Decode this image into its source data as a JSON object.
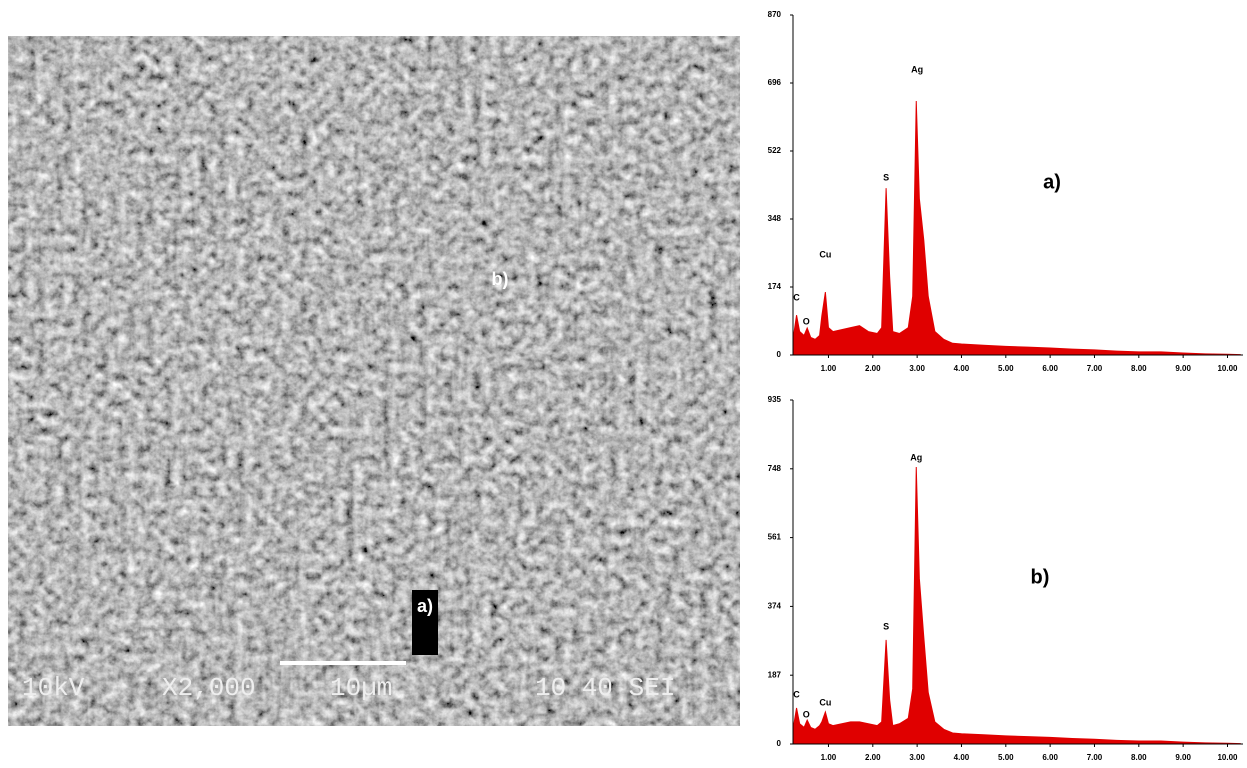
{
  "image": {
    "labels": [
      "b)",
      "a)"
    ],
    "info": [
      "10kV",
      "X2,000",
      "10µm",
      "10 40 SEI"
    ]
  },
  "chart_data": [
    {
      "type": "area",
      "label": "a)",
      "color": "#e00000",
      "x": [
        0.2,
        0.28,
        0.35,
        0.45,
        0.52,
        0.6,
        0.7,
        0.8,
        0.85,
        0.93,
        1.0,
        1.1,
        1.3,
        1.5,
        1.7,
        1.9,
        2.1,
        2.2,
        2.3,
        2.38,
        2.45,
        2.6,
        2.8,
        2.9,
        2.98,
        3.05,
        3.15,
        3.25,
        3.4,
        3.6,
        3.8,
        4.0,
        4.5,
        5,
        5.5,
        6,
        6.5,
        7,
        7.5,
        8,
        8.5,
        9,
        9.5,
        10,
        10.3
      ],
      "values": [
        40,
        102,
        60,
        50,
        69,
        45,
        40,
        50,
        100,
        161,
        70,
        60,
        65,
        70,
        75,
        60,
        55,
        70,
        427,
        200,
        60,
        55,
        70,
        150,
        650,
        400,
        294,
        150,
        60,
        40,
        30,
        28,
        25,
        22,
        20,
        18,
        15,
        13,
        10,
        8,
        8,
        5,
        3,
        2,
        1
      ],
      "xlim": [
        0.2,
        10.35
      ],
      "ylim": [
        0,
        870
      ],
      "xticks": [
        {
          "value": 1,
          "label": "1.00"
        },
        {
          "value": 2,
          "label": "2.00"
        },
        {
          "value": 3,
          "label": "3.00"
        },
        {
          "value": 4,
          "label": "4.00"
        },
        {
          "value": 5,
          "label": "5.00"
        },
        {
          "value": 6,
          "label": "6.00"
        },
        {
          "value": 7,
          "label": "7.00"
        },
        {
          "value": 8,
          "label": "8.00"
        },
        {
          "value": 9,
          "label": "9.00"
        },
        {
          "value": 10,
          "label": "10.00"
        }
      ],
      "yticks": [
        0,
        174,
        348,
        522,
        696,
        870
      ],
      "annotations": [
        {
          "text": "C",
          "x": 0.28,
          "y": 146
        },
        {
          "text": "O",
          "x": 0.5,
          "y": 84
        },
        {
          "text": "Cu",
          "x": 0.93,
          "y": 256
        },
        {
          "text": "S",
          "x": 2.3,
          "y": 453
        },
        {
          "text": "Ag",
          "x": 3.0,
          "y": 729
        }
      ]
    },
    {
      "type": "area",
      "label": "b)",
      "color": "#e00000",
      "x": [
        0.2,
        0.28,
        0.35,
        0.45,
        0.52,
        0.6,
        0.7,
        0.8,
        0.85,
        0.93,
        1.0,
        1.1,
        1.3,
        1.5,
        1.7,
        1.9,
        2.1,
        2.2,
        2.3,
        2.38,
        2.45,
        2.6,
        2.8,
        2.9,
        2.98,
        3.05,
        3.15,
        3.25,
        3.4,
        3.6,
        3.8,
        4.0,
        4.5,
        5,
        5.5,
        6,
        6.5,
        7,
        7.5,
        8,
        8.5,
        9,
        9.5,
        10,
        10.3
      ],
      "values": [
        40,
        98,
        55,
        45,
        65,
        45,
        40,
        50,
        60,
        87,
        55,
        50,
        55,
        60,
        60,
        55,
        50,
        60,
        283,
        120,
        50,
        55,
        70,
        150,
        753,
        450,
        291,
        140,
        60,
        40,
        30,
        28,
        25,
        22,
        20,
        18,
        15,
        13,
        10,
        8,
        8,
        5,
        3,
        2,
        1
      ],
      "xlim": [
        0.2,
        10.35
      ],
      "ylim": [
        0,
        935
      ],
      "xticks": [
        {
          "value": 1,
          "label": "1.00"
        },
        {
          "value": 2,
          "label": "2.00"
        },
        {
          "value": 3,
          "label": "3.00"
        },
        {
          "value": 4,
          "label": "4.00"
        },
        {
          "value": 5,
          "label": "5.00"
        },
        {
          "value": 6,
          "label": "6.00"
        },
        {
          "value": 7,
          "label": "7.00"
        },
        {
          "value": 8,
          "label": "8.00"
        },
        {
          "value": 9,
          "label": "9.00"
        },
        {
          "value": 10,
          "label": "10.00"
        }
      ],
      "yticks": [
        0,
        187,
        374,
        561,
        748,
        935
      ],
      "annotations": [
        {
          "text": "C",
          "x": 0.28,
          "y": 133
        },
        {
          "text": "O",
          "x": 0.5,
          "y": 79
        },
        {
          "text": "Cu",
          "x": 0.93,
          "y": 111
        },
        {
          "text": "S",
          "x": 2.3,
          "y": 318
        },
        {
          "text": "Ag",
          "x": 2.98,
          "y": 777
        }
      ]
    }
  ]
}
